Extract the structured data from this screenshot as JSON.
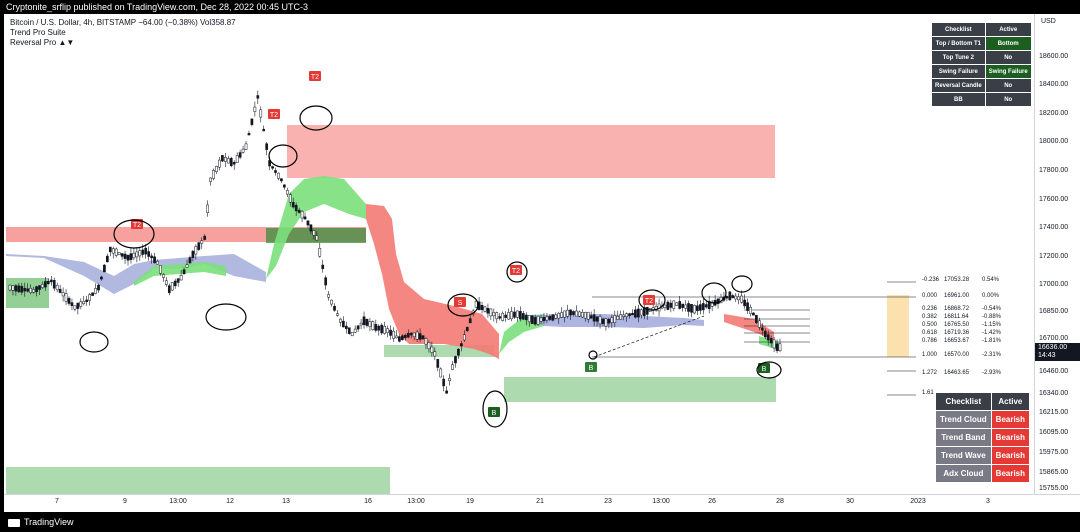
{
  "header": {
    "published": "Cryptonite_srflip published on TradingView.com, Dec 28, 2022 00:45 UTC-3"
  },
  "legend": {
    "symbol_line": "Bitcoin / U.S. Dollar, 4h, BITSTAMP  −64.00 (−0.38%)  Vol358.87",
    "indicator1": "Trend Pro Suite",
    "indicator2": "Reversal Pro ▲▼"
  },
  "checklist_top": {
    "headers": [
      "Checklist",
      "Active"
    ],
    "rows": [
      [
        "Top / Bottom T1",
        "Bottom"
      ],
      [
        "Top Tune 2",
        "No"
      ],
      [
        "Swing Failure",
        "Swing Failure"
      ],
      [
        "Reversal Candle",
        "No"
      ],
      [
        "BB",
        "No"
      ]
    ]
  },
  "checklist_bottom": {
    "headers": [
      "Checklist",
      "Active"
    ],
    "rows": [
      [
        "Trend Cloud",
        "Bearish"
      ],
      [
        "Trend Band",
        "Bearish"
      ],
      [
        "Trend Wave",
        "Bearish"
      ],
      [
        "Adx Cloud",
        "Bearish"
      ]
    ]
  },
  "fib_levels": [
    {
      "level": "-0.236",
      "price": "17053.28",
      "pct": "0.54%"
    },
    {
      "level": "0.000",
      "price": "16961.00",
      "pct": "0.00%"
    },
    {
      "level": "0.236",
      "price": "16868.72",
      "pct": "-0.54%"
    },
    {
      "level": "0.382",
      "price": "16811.64",
      "pct": "-0.88%"
    },
    {
      "level": "0.500",
      "price": "16765.50",
      "pct": "-1.15%"
    },
    {
      "level": "0.618",
      "price": "16719.36",
      "pct": "-1.42%"
    },
    {
      "level": "0.786",
      "price": "16653.67",
      "pct": "-1.81%"
    },
    {
      "level": "1.000",
      "price": "16570.00",
      "pct": "-2.31%"
    },
    {
      "level": "1.272",
      "price": "16463.65",
      "pct": "-2.93%"
    },
    {
      "level": "1.61",
      "price": "",
      "pct": ""
    }
  ],
  "price_axis": {
    "currency": "USD",
    "ticks": [
      "18600.00",
      "18400.00",
      "18200.00",
      "18000.00",
      "17800.00",
      "17600.00",
      "17400.00",
      "17200.00",
      "17000.00",
      "16850.00",
      "16700.00",
      "16460.00",
      "16340.00",
      "16215.00",
      "16095.00",
      "15975.00",
      "15865.00",
      "15755.00"
    ],
    "current_price": "16636.00",
    "countdown": "14:43"
  },
  "time_axis": {
    "ticks": [
      "7",
      "9",
      "13:00",
      "12",
      "13",
      "16",
      "13:00",
      "19",
      "21",
      "23",
      "13:00",
      "26",
      "28",
      "30",
      "2023",
      "3"
    ]
  },
  "footer": {
    "brand": "TradingView"
  },
  "colors": {
    "bull": "#131722",
    "bear": "#131722",
    "cloud_bull": "#7be07b",
    "cloud_bear": "#f37a74",
    "cloud_neutral": "#9fa8da",
    "zone_red": "#f8a5a2",
    "zone_green": "#a5d6a7",
    "label_red": "#e53935",
    "label_green": "#2e7d32"
  },
  "chart_data": {
    "type": "candlestick",
    "title": "Bitcoin / U.S. Dollar, 4h, BITSTAMP",
    "xlabel": "",
    "ylabel": "",
    "ylim": [
      15755,
      18650
    ],
    "signals": [
      {
        "label": "T2",
        "price": 17385,
        "bar": 28
      },
      {
        "label": "T2",
        "price": 18230,
        "bar": 57
      },
      {
        "label": "T2",
        "price": 18495,
        "bar": 64
      },
      {
        "label": "T2",
        "price": 17155,
        "bar": 104
      },
      {
        "label": "T2",
        "price": 16985,
        "bar": 131
      },
      {
        "label": "S",
        "price": 16975,
        "bar": 93
      },
      {
        "label": "B",
        "price": 16310,
        "bar": 100
      },
      {
        "label": "B",
        "price": 16630,
        "bar": 155
      },
      {
        "label": "B",
        "price": 16485,
        "bar": 155
      }
    ]
  }
}
